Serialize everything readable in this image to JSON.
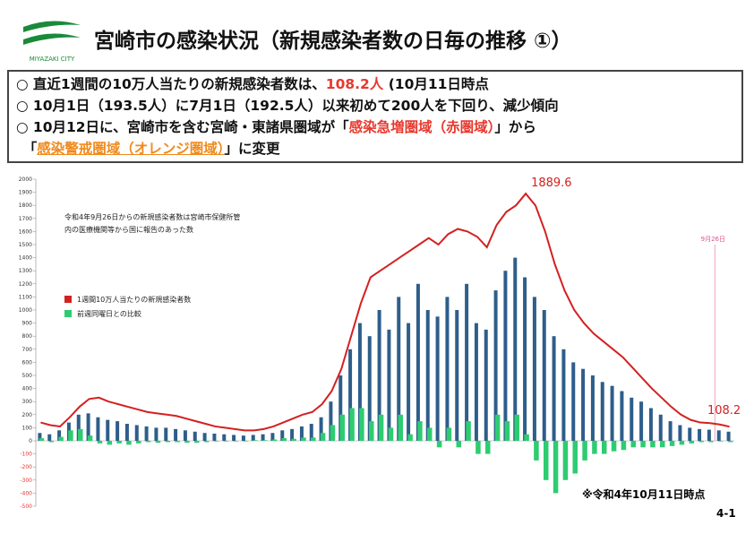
{
  "header": {
    "logo_text": "MIYAZAKI CITY",
    "title": "宮崎市の感染状況（新規感染者数の日毎の推移 ①）"
  },
  "bullets": [
    [
      {
        "t": "○ 直近1週間の10万人当たりの新規感染者数は、"
      },
      {
        "t": "108.2人",
        "color": "#e8382e"
      },
      {
        "t": " (10月11日時点"
      }
    ],
    [
      {
        "t": "○ 10月1日（193.5人）に7月1日（192.5人）以来初めて200人を下回り、減少傾向"
      }
    ],
    [
      {
        "t": "○ 10月12日に、宮崎市を含む宮崎・東諸県圏域が「"
      },
      {
        "t": "感染急増圏域（赤圏域）",
        "color": "#e8382e"
      },
      {
        "t": "」から"
      }
    ],
    [
      {
        "t": "　「"
      },
      {
        "t": "感染警戒圏域（オレンジ圏域）",
        "color": "#f08a1c",
        "underline": true
      },
      {
        "t": "」に変更"
      }
    ]
  ],
  "chart_data": {
    "type": "bar_line",
    "note": "令和4年9月26日からの新規感染者数は宮崎市保健所管内の医療機関等から国に報告のあった数",
    "marker_label": "9月26日",
    "ylim": [
      -500,
      2000
    ],
    "yticks": [
      -500,
      -400,
      -300,
      -200,
      -100,
      0,
      100,
      200,
      300,
      400,
      500,
      600,
      700,
      800,
      900,
      1000,
      1100,
      1200,
      1300,
      1400,
      1500,
      1600,
      1700,
      1800,
      1900,
      2000
    ],
    "series": [
      {
        "name": "1週間10万人当たりの新規感染者数",
        "type": "line",
        "color": "#d42020",
        "values": [
          140,
          120,
          110,
          180,
          260,
          320,
          330,
          300,
          280,
          260,
          240,
          220,
          210,
          200,
          190,
          170,
          150,
          130,
          110,
          100,
          90,
          80,
          80,
          90,
          110,
          140,
          170,
          200,
          220,
          280,
          380,
          550,
          800,
          1050,
          1250,
          1300,
          1350,
          1400,
          1450,
          1500,
          1550,
          1500,
          1580,
          1620,
          1600,
          1560,
          1480,
          1650,
          1750,
          1800,
          1889.6,
          1800,
          1600,
          1350,
          1150,
          1000,
          900,
          820,
          760,
          700,
          640,
          560,
          480,
          400,
          330,
          260,
          200,
          160,
          140,
          135,
          125,
          108.2
        ]
      },
      {
        "type": "bar",
        "color": "#2e5e8a",
        "values": [
          60,
          50,
          80,
          140,
          200,
          210,
          180,
          160,
          150,
          130,
          120,
          110,
          100,
          100,
          90,
          80,
          70,
          60,
          55,
          50,
          45,
          40,
          45,
          50,
          60,
          80,
          90,
          110,
          130,
          180,
          300,
          500,
          700,
          900,
          800,
          1000,
          850,
          1100,
          900,
          1200,
          1000,
          950,
          1100,
          1000,
          1200,
          900,
          850,
          1150,
          1300,
          1400,
          1250,
          1100,
          1000,
          800,
          700,
          600,
          550,
          500,
          450,
          420,
          380,
          330,
          300,
          250,
          200,
          150,
          120,
          100,
          90,
          85,
          80,
          70
        ]
      },
      {
        "name": "前週同曜日との比較",
        "type": "bar",
        "color": "#2ecc71",
        "values": [
          20,
          -10,
          30,
          80,
          90,
          40,
          -20,
          -30,
          -20,
          -30,
          -20,
          -10,
          -15,
          -10,
          -10,
          -15,
          -15,
          -10,
          -5,
          -5,
          -5,
          -5,
          5,
          5,
          10,
          20,
          15,
          25,
          25,
          60,
          120,
          200,
          250,
          250,
          150,
          200,
          100,
          200,
          50,
          150,
          100,
          -50,
          100,
          -50,
          150,
          -100,
          -100,
          200,
          150,
          200,
          50,
          -150,
          -300,
          -400,
          -300,
          -250,
          -150,
          -100,
          -100,
          -80,
          -70,
          -50,
          -50,
          -50,
          -50,
          -40,
          -30,
          -20,
          -10,
          -10,
          -5,
          -10
        ]
      }
    ]
  },
  "footer": {
    "note": "※令和4年10月11日時点",
    "page": "4-1"
  }
}
